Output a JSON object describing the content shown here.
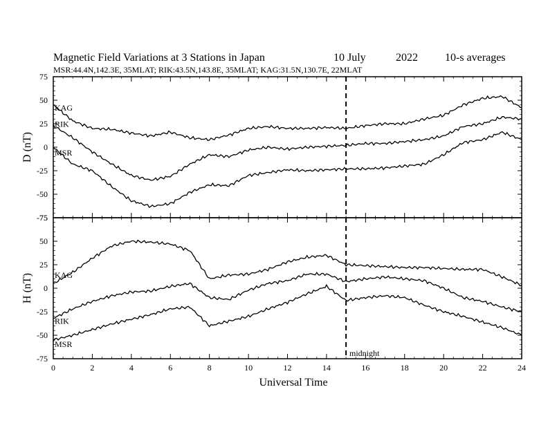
{
  "title": {
    "main": "Magnetic Field Variations at 3 Stations in Japan",
    "date": "10 July",
    "year": "2022",
    "averaging": "10-s averages"
  },
  "subtitle": "MSR:44.4N,142.3E, 35MLAT;  RIK:43.5N,143.8E, 35MLAT;  KAG:31.5N,130.7E, 22MLAT",
  "xlabel": "Universal Time",
  "annotation": "midnight",
  "chart_data": [
    {
      "type": "line",
      "panel": "D",
      "ylabel": "D (nT)",
      "xlim": [
        0,
        24
      ],
      "ylim": [
        -75,
        75
      ],
      "xticks": [
        0,
        2,
        4,
        6,
        8,
        10,
        12,
        14,
        16,
        18,
        20,
        22,
        24
      ],
      "yticks": [
        75,
        50,
        25,
        0,
        -25,
        -50,
        -75
      ],
      "vline": {
        "x": 15,
        "style": "dashed"
      },
      "x": [
        0,
        1,
        2,
        3,
        4,
        5,
        6,
        7,
        8,
        9,
        10,
        11,
        12,
        13,
        14,
        15,
        16,
        17,
        18,
        19,
        20,
        21,
        22,
        23,
        24
      ],
      "series": [
        {
          "name": "KAG",
          "values": [
            45,
            28,
            20,
            19,
            15,
            12,
            16,
            10,
            8,
            13,
            20,
            22,
            20,
            20,
            21,
            20,
            23,
            25,
            25,
            30,
            34,
            45,
            52,
            54,
            42
          ]
        },
        {
          "name": "RIK",
          "values": [
            23,
            10,
            -5,
            -18,
            -30,
            -35,
            -31,
            -18,
            -8,
            -10,
            -3,
            0,
            -2,
            0,
            1,
            2,
            4,
            4,
            6,
            8,
            12,
            22,
            25,
            32,
            30
          ]
        },
        {
          "name": "MSR",
          "values": [
            0,
            -18,
            -25,
            -42,
            -57,
            -63,
            -60,
            -48,
            -40,
            -41,
            -30,
            -27,
            -24,
            -25,
            -24,
            -23,
            -23,
            -22,
            -20,
            -18,
            -8,
            5,
            8,
            16,
            8
          ]
        }
      ]
    },
    {
      "type": "line",
      "panel": "H",
      "ylabel": "H (nT)",
      "xlim": [
        0,
        24
      ],
      "ylim": [
        -75,
        75
      ],
      "xticks": [
        0,
        2,
        4,
        6,
        8,
        10,
        12,
        14,
        16,
        18,
        20,
        22,
        24
      ],
      "yticks": [
        75,
        50,
        25,
        0,
        -25,
        -50,
        -75
      ],
      "vline": {
        "x": 15,
        "style": "dashed"
      },
      "x": [
        0,
        1,
        2,
        3,
        4,
        5,
        6,
        7,
        8,
        9,
        10,
        11,
        12,
        13,
        14,
        15,
        16,
        17,
        18,
        19,
        20,
        21,
        22,
        23,
        24
      ],
      "series": [
        {
          "name": "KAG",
          "values": [
            5,
            17,
            32,
            45,
            50,
            49,
            47,
            40,
            10,
            14,
            15,
            20,
            28,
            33,
            35,
            25,
            24,
            23,
            22,
            22,
            21,
            20,
            20,
            12,
            3
          ]
        },
        {
          "name": "RIK",
          "values": [
            -32,
            -22,
            -14,
            -8,
            -4,
            -3,
            2,
            5,
            -10,
            -12,
            -2,
            5,
            8,
            15,
            15,
            7,
            10,
            12,
            10,
            8,
            0,
            -10,
            -14,
            -20,
            -25
          ]
        },
        {
          "name": "MSR",
          "values": [
            -55,
            -50,
            -44,
            -38,
            -33,
            -28,
            -22,
            -20,
            -40,
            -35,
            -30,
            -22,
            -15,
            -6,
            2,
            -13,
            -10,
            -8,
            -10,
            -18,
            -25,
            -30,
            -36,
            -42,
            -50
          ]
        }
      ]
    }
  ]
}
